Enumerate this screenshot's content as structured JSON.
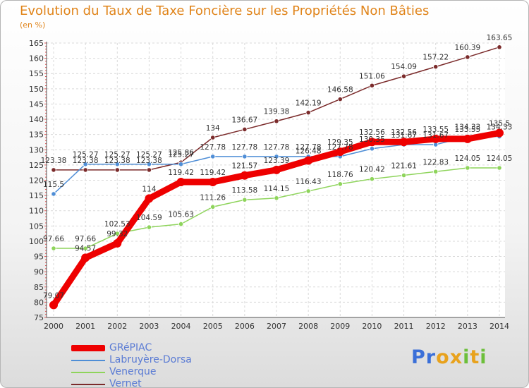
{
  "title": "Evolution du Taux de Taxe Foncière sur les Propriétés Non Bâties",
  "unit_label": "(en %)",
  "logo": {
    "text": "Proxiti",
    "colors": [
      "#3a6fd8",
      "#3a6fd8",
      "#e8a21d",
      "#e8a21d",
      "#6cbf3a",
      "#e8a21d",
      "#6cbf3a"
    ]
  },
  "chart_data": {
    "type": "line",
    "title": "Evolution du Taux de Taxe Foncière sur les Propriétés Non Bâties",
    "ylabel": "(en %)",
    "xlabel": "",
    "ylim": [
      75,
      165
    ],
    "yticks": [
      75,
      80,
      85,
      90,
      95,
      100,
      105,
      110,
      115,
      120,
      125,
      130,
      135,
      140,
      145,
      150,
      155,
      160,
      165
    ],
    "categories": [
      "2000",
      "2001",
      "2002",
      "2003",
      "2004",
      "2005",
      "2006",
      "2007",
      "2008",
      "2009",
      "2010",
      "2011",
      "2012",
      "2013",
      "2014"
    ],
    "grid": true,
    "legend_position": "bottom-left",
    "series": [
      {
        "name": "Vernet",
        "color": "#7b2b2b",
        "values": [
          123.38,
          123.38,
          123.38,
          123.38,
          125.86,
          134,
          136.67,
          139.38,
          142.19,
          146.58,
          151.06,
          154.09,
          157.22,
          160.39,
          163.65
        ],
        "labels": [
          "123.38",
          "123.38",
          "123.38",
          "123.38",
          "125.86",
          "134",
          "136.67",
          "139.38",
          "142.19",
          "146.58",
          "151.06",
          "154.09",
          "157.22",
          "160.39",
          "163.65"
        ]
      },
      {
        "name": "Labruyère-Dorsa",
        "color": "#4f8ed6",
        "values": [
          115.5,
          125.27,
          125.27,
          125.27,
          125.27,
          127.78,
          127.78,
          127.78,
          127.78,
          127.78,
          130.35,
          131.67,
          131.67,
          134.33,
          134.33
        ],
        "labels": [
          "115.5",
          "125.27",
          "125.27",
          "125.27",
          "125.27",
          "127.78",
          "127.78",
          "127.78",
          "127.78",
          "127.78",
          "130.35",
          "131.67",
          "131.67",
          "134.33",
          "134.33"
        ]
      },
      {
        "name": "Venerque",
        "color": "#8ed45b",
        "values": [
          97.66,
          97.66,
          102.53,
          104.59,
          105.63,
          111.26,
          113.58,
          114.15,
          116.43,
          118.76,
          120.42,
          121.61,
          122.83,
          124.05,
          124.05
        ],
        "labels": [
          "97.66",
          "97.66",
          "102.53",
          "104.59",
          "105.63",
          "111.26",
          "113.58",
          "114.15",
          "116.43",
          "118.76",
          "120.42",
          "121.61",
          "122.83",
          "124.05",
          "124.05"
        ]
      },
      {
        "name": "GRéPIAC",
        "color": "#ee0000",
        "values": [
          79.07,
          94.57,
          99.32,
          114,
          119.42,
          119.42,
          121.57,
          123.39,
          126.48,
          129.35,
          132.56,
          132.56,
          133.55,
          133.55,
          135.5
        ],
        "labels": [
          "79.07",
          "94.57",
          "99.32",
          "114",
          "119.42",
          "119.42",
          "121.57",
          "123.39",
          "126.48",
          "129.35",
          "132.56",
          "132.56",
          "133.55",
          "133.55",
          "135.5"
        ]
      }
    ]
  },
  "legend": [
    {
      "label": "GRéPIAC",
      "color": "#ee0000"
    },
    {
      "label": "Labruyère-Dorsa",
      "color": "#4f8ed6"
    },
    {
      "label": "Venerque",
      "color": "#8ed45b"
    },
    {
      "label": "Vernet",
      "color": "#7b2b2b"
    }
  ]
}
